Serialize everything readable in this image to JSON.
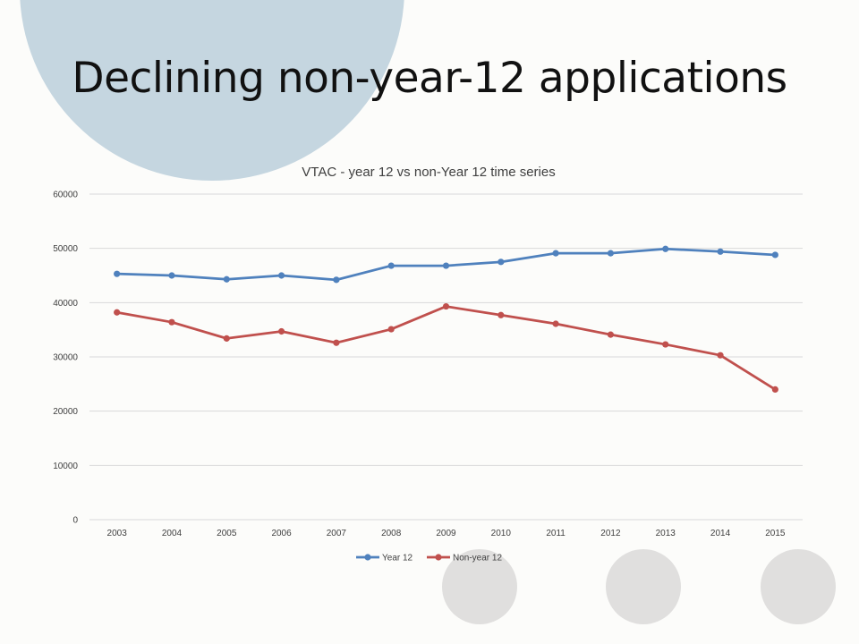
{
  "slide": {
    "title": "Declining non-year-12 applications"
  },
  "colors": {
    "decor_circle": "#c5d6e0",
    "gray_circles": "#e0dfde",
    "gridline": "#d9d9d9"
  },
  "chart_data": {
    "type": "line",
    "title": "VTAC - year 12 vs non-Year 12 time series",
    "xlabel": "",
    "ylabel": "",
    "x": [
      "2003",
      "2004",
      "2005",
      "2006",
      "2007",
      "2008",
      "2009",
      "2010",
      "2011",
      "2012",
      "2013",
      "2014",
      "2015"
    ],
    "ylim": [
      0,
      60000
    ],
    "yticks": [
      0,
      10000,
      20000,
      30000,
      40000,
      50000,
      60000
    ],
    "grid": true,
    "legend_position": "bottom",
    "series": [
      {
        "name": "Year 12",
        "color": "#4f81bd",
        "values": [
          45300,
          45000,
          44300,
          45000,
          44200,
          46800,
          46800,
          47500,
          49100,
          49100,
          49900,
          49400,
          48800
        ]
      },
      {
        "name": "Non-year 12",
        "color": "#c0504d",
        "values": [
          38200,
          36400,
          33400,
          34700,
          32600,
          35100,
          39300,
          37700,
          36100,
          34100,
          32300,
          30300,
          24000
        ]
      }
    ]
  }
}
